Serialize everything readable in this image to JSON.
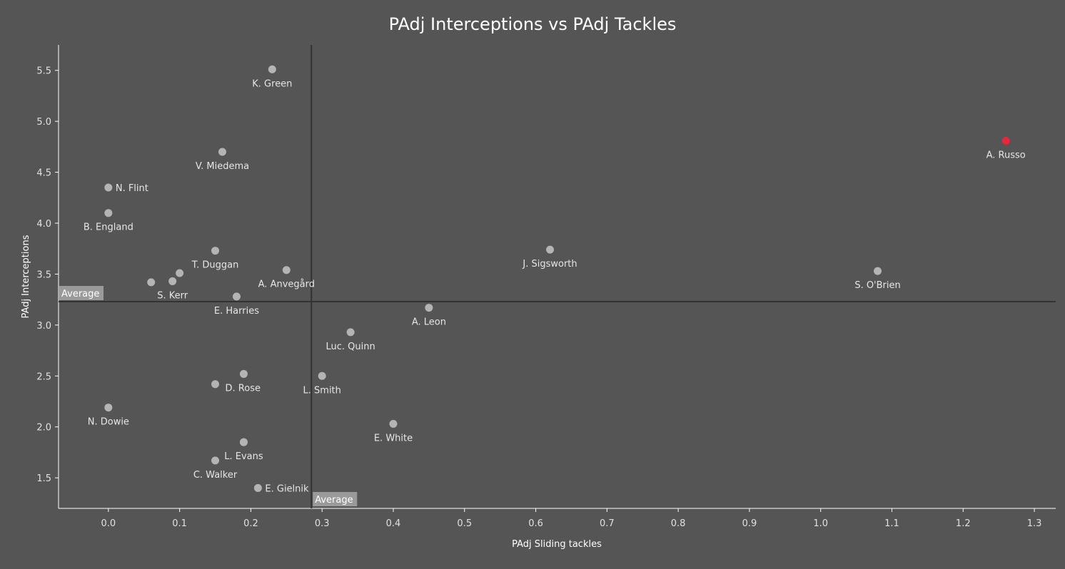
{
  "chart_data": {
    "type": "scatter",
    "title": "PAdj Interceptions vs PAdj Tackles",
    "xlabel": "PAdj Sliding tackles",
    "ylabel": "PAdj Interceptions",
    "xlim": [
      -0.07,
      1.33
    ],
    "ylim": [
      1.2,
      5.75
    ],
    "xticks": [
      0.0,
      0.1,
      0.2,
      0.3,
      0.4,
      0.5,
      0.6,
      0.7,
      0.8,
      0.9,
      1.0,
      1.1,
      1.2,
      1.3
    ],
    "xtick_labels": [
      "0.0",
      "0.1",
      "0.2",
      "0.3",
      "0.4",
      "0.5",
      "0.6",
      "0.7",
      "0.8",
      "0.9",
      "1.0",
      "1.1",
      "1.2",
      "1.3"
    ],
    "yticks": [
      1.5,
      2.0,
      2.5,
      3.0,
      3.5,
      4.0,
      4.5,
      5.0,
      5.5
    ],
    "ytick_labels": [
      "1.5",
      "2.0",
      "2.5",
      "3.0",
      "3.5",
      "4.0",
      "4.5",
      "5.0",
      "5.5"
    ],
    "grid": false,
    "averages": {
      "x": 0.285,
      "y": 3.23,
      "x_label": "Average",
      "y_label": "Average"
    },
    "colors": {
      "default_point": "#b4b4b4",
      "highlight_point": "#e8263c",
      "avg_line": "#333333"
    },
    "points": [
      {
        "name": "K. Green",
        "x": 0.23,
        "y": 5.51,
        "label_pos": "below"
      },
      {
        "name": "A. Russo",
        "x": 1.26,
        "y": 4.81,
        "label_pos": "below",
        "highlight": true
      },
      {
        "name": "V. Miedema",
        "x": 0.16,
        "y": 4.7,
        "label_pos": "below"
      },
      {
        "name": "N. Flint",
        "x": 0.0,
        "y": 4.35,
        "label_pos": "right"
      },
      {
        "name": "B. England",
        "x": 0.0,
        "y": 4.1,
        "label_pos": "below"
      },
      {
        "name": "T. Duggan",
        "x": 0.15,
        "y": 3.73,
        "label_pos": "below"
      },
      {
        "name": "J. Sigsworth",
        "x": 0.62,
        "y": 3.74,
        "label_pos": "below"
      },
      {
        "name": "",
        "x": 0.1,
        "y": 3.51,
        "label_pos": "none"
      },
      {
        "name": "",
        "x": 0.06,
        "y": 3.42,
        "label_pos": "none"
      },
      {
        "name": "S. Kerr",
        "x": 0.09,
        "y": 3.43,
        "label_pos": "below"
      },
      {
        "name": "A. Anvegård",
        "x": 0.25,
        "y": 3.54,
        "label_pos": "below"
      },
      {
        "name": "S. O'Brien",
        "x": 1.08,
        "y": 3.53,
        "label_pos": "below"
      },
      {
        "name": "E. Harries",
        "x": 0.18,
        "y": 3.28,
        "label_pos": "below"
      },
      {
        "name": "A. Leon",
        "x": 0.45,
        "y": 3.17,
        "label_pos": "below"
      },
      {
        "name": "Luc. Quinn",
        "x": 0.34,
        "y": 2.93,
        "label_pos": "below"
      },
      {
        "name": "",
        "x": 0.19,
        "y": 2.52,
        "label_pos": "none"
      },
      {
        "name": "D. Rose",
        "x": 0.15,
        "y": 2.42,
        "label_pos": "below-right"
      },
      {
        "name": "L. Smith",
        "x": 0.3,
        "y": 2.5,
        "label_pos": "below"
      },
      {
        "name": "N. Dowie",
        "x": 0.0,
        "y": 2.19,
        "label_pos": "below"
      },
      {
        "name": "E. White",
        "x": 0.4,
        "y": 2.03,
        "label_pos": "below"
      },
      {
        "name": "",
        "x": 0.19,
        "y": 1.85,
        "label_pos": "none"
      },
      {
        "name": "L. Evans",
        "x": 0.19,
        "y": 1.85,
        "label_pos": "below"
      },
      {
        "name": "C. Walker",
        "x": 0.15,
        "y": 1.67,
        "label_pos": "below"
      },
      {
        "name": "E. Gielnik",
        "x": 0.21,
        "y": 1.4,
        "label_pos": "right"
      }
    ]
  }
}
